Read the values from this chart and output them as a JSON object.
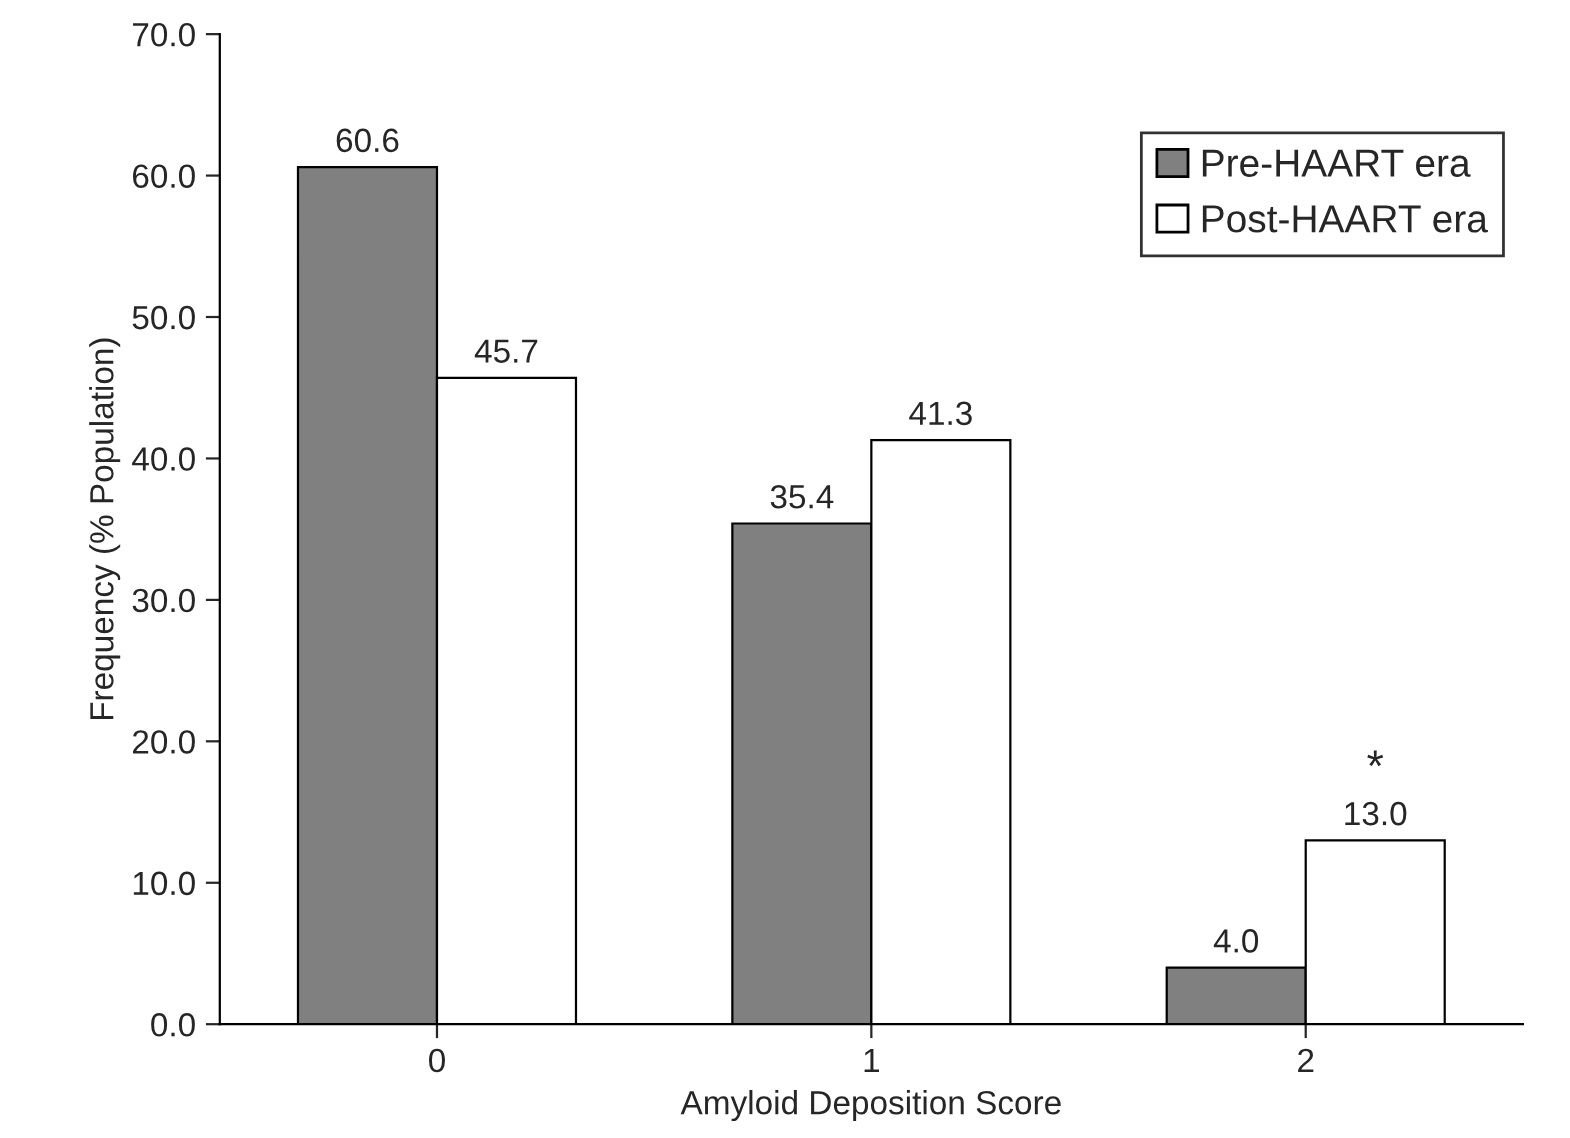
{
  "chart_data": {
    "type": "bar",
    "xlabel": "Amyloid Deposition Score",
    "ylabel": "Frequency (% Population)",
    "categories": [
      "0",
      "1",
      "2"
    ],
    "series": [
      {
        "name": "Pre-HAART era",
        "color": "#808080",
        "values": [
          60.6,
          35.4,
          4.0
        ],
        "value_labels": [
          "60.6",
          "35.4",
          "4.0"
        ]
      },
      {
        "name": "Post-HAART era",
        "color": "#ffffff",
        "values": [
          45.7,
          41.3,
          13.0
        ],
        "value_labels": [
          "45.7",
          "41.3",
          "13.0"
        ]
      }
    ],
    "ylim": [
      0,
      70
    ],
    "yticks": [
      {
        "value": 0,
        "label": "0.0"
      },
      {
        "value": 10,
        "label": "10.0"
      },
      {
        "value": 20,
        "label": "20.0"
      },
      {
        "value": 30,
        "label": "30.0"
      },
      {
        "value": 40,
        "label": "40.0"
      },
      {
        "value": 50,
        "label": "50.0"
      },
      {
        "value": 60,
        "label": "60.0"
      },
      {
        "value": 70,
        "label": "70.0"
      }
    ],
    "annotations": [
      {
        "text": "*",
        "x": "2",
        "y": 13.0
      }
    ],
    "legend": "top right",
    "grid": false
  }
}
